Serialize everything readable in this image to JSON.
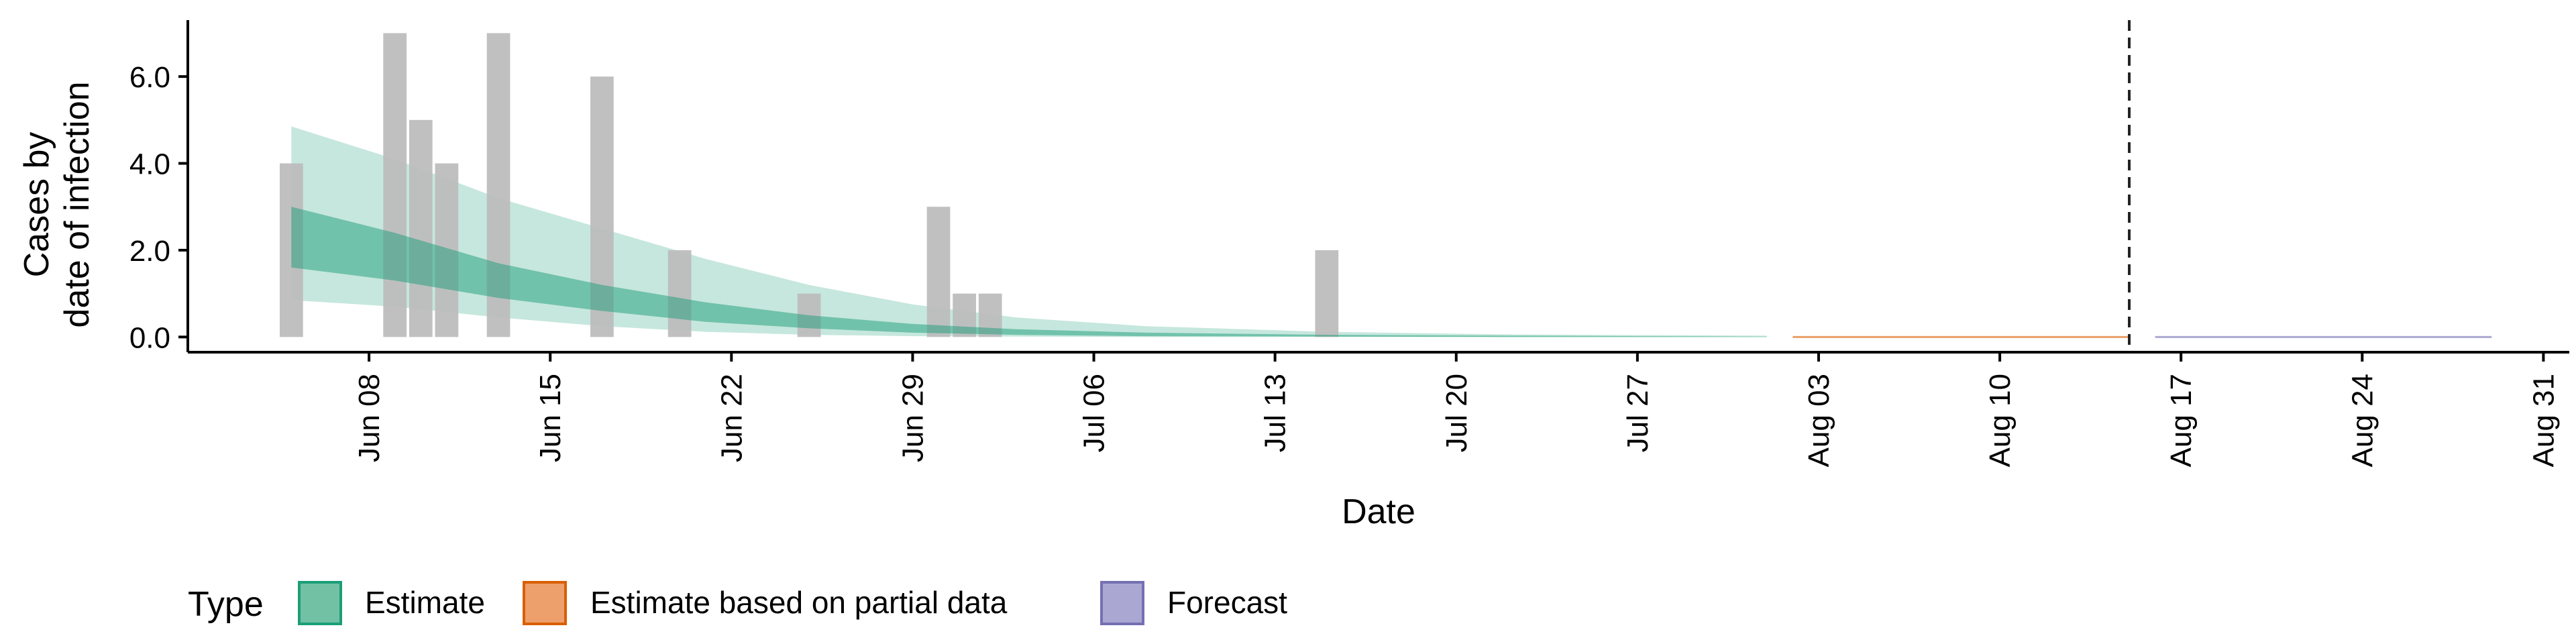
{
  "chart_data": {
    "type": "bar",
    "xlabel": "Date",
    "ylabel_lines": [
      "Cases by",
      "date of infection"
    ],
    "y_ticks": [
      "0.0",
      "2.0",
      "4.0",
      "6.0"
    ],
    "y_tick_values": [
      0,
      2,
      4,
      6
    ],
    "ylim": [
      -0.35,
      7.3
    ],
    "x_tick_labels": [
      "Jun 08",
      "Jun 15",
      "Jun 22",
      "Jun 29",
      "Jul 06",
      "Jul 13",
      "Jul 20",
      "Jul 27",
      "Aug 03",
      "Aug 10",
      "Aug 17",
      "Aug 24",
      "Aug 31"
    ],
    "x_tick_dates": [
      "2020-06-08",
      "2020-06-15",
      "2020-06-22",
      "2020-06-29",
      "2020-07-06",
      "2020-07-13",
      "2020-07-20",
      "2020-07-27",
      "2020-08-03",
      "2020-08-10",
      "2020-08-17",
      "2020-08-24",
      "2020-08-31"
    ],
    "xlim": [
      "2020-06-01",
      "2020-09-01"
    ],
    "reported_cases": [
      {
        "date": "2020-06-05",
        "value": 4
      },
      {
        "date": "2020-06-09",
        "value": 7
      },
      {
        "date": "2020-06-10",
        "value": 5
      },
      {
        "date": "2020-06-11",
        "value": 4
      },
      {
        "date": "2020-06-13",
        "value": 7
      },
      {
        "date": "2020-06-17",
        "value": 6
      },
      {
        "date": "2020-06-20",
        "value": 2
      },
      {
        "date": "2020-06-25",
        "value": 1
      },
      {
        "date": "2020-06-30",
        "value": 3
      },
      {
        "date": "2020-07-01",
        "value": 1
      },
      {
        "date": "2020-07-02",
        "value": 1
      },
      {
        "date": "2020-07-15",
        "value": 2
      }
    ],
    "estimate_dates": [
      "2020-06-05",
      "2020-06-09",
      "2020-06-13",
      "2020-06-17",
      "2020-06-21",
      "2020-06-25",
      "2020-06-29",
      "2020-07-03",
      "2020-07-08",
      "2020-07-15",
      "2020-07-22",
      "2020-08-01"
    ],
    "estimate_outer_upper": [
      4.85,
      4.1,
      3.2,
      2.5,
      1.8,
      1.2,
      0.75,
      0.45,
      0.25,
      0.12,
      0.06,
      0.03
    ],
    "estimate_inner_upper": [
      3.0,
      2.4,
      1.7,
      1.2,
      0.8,
      0.5,
      0.3,
      0.18,
      0.1,
      0.05,
      0.03,
      0.01
    ],
    "estimate_inner_lower": [
      1.6,
      1.3,
      0.9,
      0.6,
      0.35,
      0.2,
      0.1,
      0.05,
      0.02,
      0.01,
      0.0,
      0.0
    ],
    "estimate_outer_lower": [
      0.85,
      0.7,
      0.45,
      0.25,
      0.12,
      0.05,
      0.02,
      0.01,
      0.0,
      0.0,
      0.0,
      0.0
    ],
    "partial_estimate_range": [
      "2020-08-02",
      "2020-08-15"
    ],
    "forecast_range": [
      "2020-08-16",
      "2020-08-29"
    ],
    "cutoff_date": "2020-08-15",
    "legend": {
      "title": "Type",
      "placement": "bottom-left",
      "items": [
        {
          "label": "Estimate",
          "fill": "#72c1a5",
          "stroke": "#1b9e77"
        },
        {
          "label": "Estimate based on partial data",
          "fill": "#eda06c",
          "stroke": "#d95f02"
        },
        {
          "label": "Forecast",
          "fill": "#aaa8d3",
          "stroke": "#7570b3"
        }
      ]
    },
    "colors": {
      "bars": "#bdbdbd",
      "estimate": "#1b9e77",
      "partial": "#d95f02",
      "forecast": "#7570b3",
      "axis": "#000000",
      "cutoff_line": "#222222"
    },
    "grid": false
  }
}
